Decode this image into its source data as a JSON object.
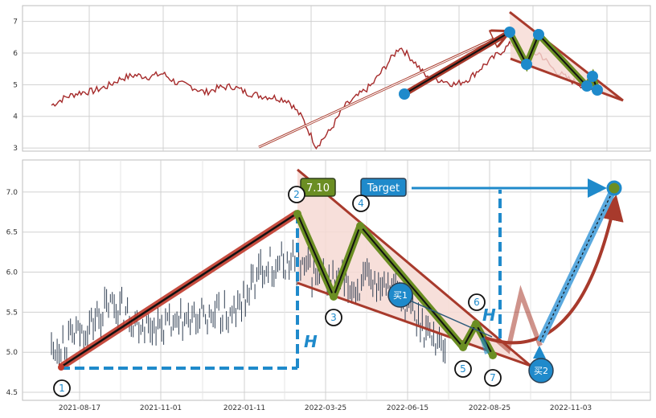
{
  "colors": {
    "price_line": "#a52a2a",
    "candle": "#2f3e52",
    "trend_red": "#a83a2c",
    "trend_black": "#111111",
    "zigzag_olive": "#6b8e23",
    "zigzag_black": "#111111",
    "point_blue": "#1f8acb",
    "target_box": "#1f8acb",
    "value_box": "#6b8e23",
    "triangle_fill": "#f6d9d3",
    "grid": "#d0d0d0"
  },
  "labels": {
    "value_box": "7.10",
    "target_box": "Target",
    "height_marker": "H",
    "buy1": "买1",
    "buy2": "买2",
    "points": [
      "1",
      "2",
      "3",
      "4",
      "5",
      "6",
      "7"
    ]
  },
  "chart_data": [
    {
      "type": "line",
      "series": [
        {
          "values_by_month": [
            [
              "2020-07",
              4.35
            ],
            [
              "2020-08",
              4.6
            ],
            [
              "2020-09",
              4.75
            ],
            [
              "2020-10",
              4.8
            ],
            [
              "2020-11",
              4.95
            ],
            [
              "2020-12",
              5.2
            ],
            [
              "2021-01",
              5.3
            ],
            [
              "2021-02",
              5.25
            ],
            [
              "2021-03",
              5.35
            ],
            [
              "2021-04",
              5.05
            ],
            [
              "2021-05",
              4.95
            ],
            [
              "2021-06",
              4.75
            ],
            [
              "2021-07",
              4.9
            ],
            [
              "2021-08",
              4.95
            ],
            [
              "2021-09",
              4.75
            ],
            [
              "2021-10",
              4.65
            ],
            [
              "2021-11",
              4.6
            ],
            [
              "2021-12",
              4.5
            ],
            [
              "2022-01",
              3.95
            ],
            [
              "2022-02",
              3.05
            ],
            [
              "2022-03",
              3.55
            ],
            [
              "2022-04",
              4.3
            ],
            [
              "2022-05",
              4.65
            ],
            [
              "2022-06",
              5.0
            ],
            [
              "2022-07",
              5.6
            ],
            [
              "2022-08",
              6.2
            ],
            [
              "2022-09",
              5.75
            ],
            [
              "2022-10",
              5.2
            ],
            [
              "2022-11",
              5.15
            ],
            [
              "2022-12",
              5.0
            ],
            [
              "2023-01",
              5.2
            ],
            [
              "2023-02",
              5.6
            ],
            [
              "2023-03",
              5.95
            ],
            [
              "2023-04",
              6.3
            ],
            [
              "2023-05",
              5.9
            ],
            [
              "2023-06",
              6.0
            ],
            [
              "2023-07",
              5.5
            ],
            [
              "2023-08",
              5.2
            ],
            [
              "2023-09",
              5.0
            ],
            [
              "2023-10",
              4.9
            ]
          ]
        }
      ],
      "yticks": [
        3,
        4,
        5,
        6,
        7
      ],
      "ylim": [
        2.9,
        7.5
      ],
      "grid": true
    },
    {
      "type": "candlestick",
      "xticks": [
        "2021-08-17",
        "2021-11-01",
        "2022-01-11",
        "2022-03-25",
        "2022-06-15",
        "2022-08-25",
        "2022-11-03"
      ],
      "yticks": [
        4.5,
        5.0,
        5.5,
        6.0,
        6.5,
        7.0
      ],
      "ylim": [
        4.4,
        7.4
      ],
      "grid": true,
      "pattern_points": [
        {
          "label": "1",
          "date": "2021-07-28",
          "value": 4.73
        },
        {
          "label": "2",
          "date": "2022-03-03",
          "value": 6.75
        },
        {
          "label": "3",
          "date": "2022-03-27",
          "value": 5.65
        },
        {
          "label": "4",
          "date": "2022-04-21",
          "value": 6.65
        },
        {
          "label": "5",
          "date": "2022-07-24",
          "value": 4.98
        },
        {
          "label": "6",
          "date": "2022-08-05",
          "value": 5.3
        },
        {
          "label": "7",
          "date": "2022-08-19",
          "value": 4.88
        }
      ],
      "target_value": 7.1,
      "buy_points": [
        {
          "label": "买1",
          "date": "2022-08-28",
          "value": 5.08
        },
        {
          "label": "买2",
          "date": "2022-10-04",
          "value": 5.15
        }
      ],
      "price_series_by_month": [
        [
          "2021-07",
          5.05
        ],
        [
          "2021-08",
          5.25
        ],
        [
          "2021-09",
          5.6
        ],
        [
          "2021-10",
          5.35
        ],
        [
          "2021-11",
          5.3
        ],
        [
          "2021-12",
          5.45
        ],
        [
          "2022-01",
          5.45
        ],
        [
          "2022-02",
          6.1
        ],
        [
          "2022-03",
          6.1
        ],
        [
          "2022-04",
          5.9
        ],
        [
          "2022-05",
          5.8
        ],
        [
          "2022-06",
          5.95
        ],
        [
          "2022-07",
          5.4
        ],
        [
          "2022-08",
          5.05
        ]
      ]
    }
  ]
}
